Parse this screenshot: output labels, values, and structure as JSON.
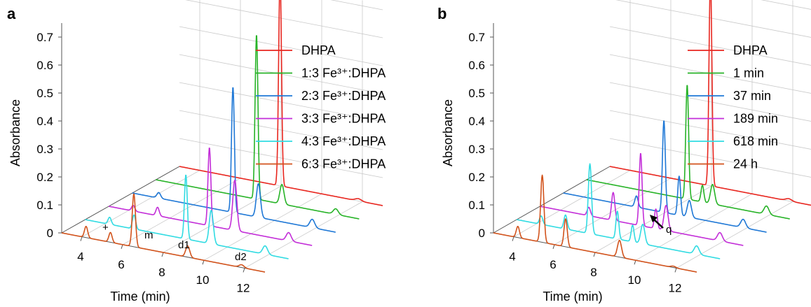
{
  "chart_data": [
    {
      "panel": "a",
      "type": "line",
      "view": "3d-waterfall",
      "xlabel": "Time (min)",
      "ylabel": "Absorbance",
      "xlim": [
        3,
        13
      ],
      "ylim": [
        0,
        0.75
      ],
      "x_ticks": [
        "4",
        "6",
        "8",
        "10",
        "12"
      ],
      "y_ticks": [
        "0",
        "0.1",
        "0.2",
        "0.3",
        "0.4",
        "0.5",
        "0.6",
        "0.7"
      ],
      "grid": true,
      "legend_position": "right",
      "series": [
        {
          "name": "DHPA",
          "color": "#e8261f",
          "peaks": [
            [
              7.95,
              0.75,
              0.07
            ],
            [
              11.8,
              0.008,
              0.15
            ]
          ]
        },
        {
          "name": "1:3 Fe³⁺:DHPA",
          "color": "#27b327",
          "peaks": [
            [
              7.95,
              0.59,
              0.07
            ],
            [
              9.2,
              0.07,
              0.1
            ],
            [
              11.85,
              0.02,
              0.12
            ]
          ]
        },
        {
          "name": "2:3 Fe³⁺:DHPA",
          "color": "#1f78d6",
          "peaks": [
            [
              4.3,
              0.02,
              0.09
            ],
            [
              7.95,
              0.45,
              0.07
            ],
            [
              9.2,
              0.12,
              0.1
            ],
            [
              11.85,
              0.03,
              0.12
            ]
          ]
        },
        {
          "name": "3:3 Fe³⁺:DHPA",
          "color": "#c32ed8",
          "peaks": [
            [
              4.2,
              0.02,
              0.08
            ],
            [
              5.4,
              0.03,
              0.08
            ],
            [
              7.95,
              0.28,
              0.07
            ],
            [
              9.2,
              0.18,
              0.1
            ],
            [
              11.85,
              0.03,
              0.12
            ]
          ]
        },
        {
          "name": "4:3 Fe³⁺:DHPA",
          "color": "#31dbe2",
          "peaks": [
            [
              4.2,
              0.025,
              0.08
            ],
            [
              5.4,
              0.05,
              0.08
            ],
            [
              7.95,
              0.23,
              0.07
            ],
            [
              9.2,
              0.12,
              0.1
            ],
            [
              11.85,
              0.03,
              0.12
            ]
          ]
        },
        {
          "name": "6:3 Fe³⁺:DHPA",
          "color": "#d2531c",
          "peaks": [
            [
              4.2,
              0.04,
              0.08
            ],
            [
              5.4,
              0.035,
              0.08
            ],
            [
              6.55,
              0.19,
              0.08
            ],
            [
              9.2,
              0.04,
              0.1
            ],
            [
              11.85,
              0.01,
              0.12
            ]
          ]
        }
      ],
      "annotations": [
        "+",
        "m",
        "d1",
        "d2"
      ]
    },
    {
      "panel": "b",
      "type": "line",
      "view": "3d-waterfall",
      "xlabel": "Time (min)",
      "ylabel": "Absorbance",
      "xlim": [
        3,
        13
      ],
      "ylim": [
        0,
        0.75
      ],
      "x_ticks": [
        "4",
        "6",
        "8",
        "10",
        "12"
      ],
      "y_ticks": [
        "0",
        "0.1",
        "0.2",
        "0.3",
        "0.4",
        "0.5",
        "0.6",
        "0.7"
      ],
      "grid": true,
      "legend_position": "right",
      "series": [
        {
          "name": "DHPA",
          "color": "#e8261f",
          "peaks": [
            [
              7.95,
              0.75,
              0.07
            ],
            [
              11.8,
              0.008,
              0.15
            ]
          ]
        },
        {
          "name": "1 min",
          "color": "#27b327",
          "peaks": [
            [
              7.95,
              0.41,
              0.07
            ],
            [
              8.7,
              0.06,
              0.07
            ],
            [
              9.2,
              0.07,
              0.1
            ],
            [
              11.85,
              0.03,
              0.12
            ]
          ]
        },
        {
          "name": "37 min",
          "color": "#1f78d6",
          "peaks": [
            [
              6.6,
              0.04,
              0.08
            ],
            [
              7.95,
              0.33,
              0.07
            ],
            [
              8.7,
              0.14,
              0.07
            ],
            [
              9.2,
              0.06,
              0.1
            ],
            [
              11.85,
              0.03,
              0.12
            ]
          ]
        },
        {
          "name": "189 min",
          "color": "#c32ed8",
          "peaks": [
            [
              5.4,
              0.03,
              0.08
            ],
            [
              6.6,
              0.1,
              0.08
            ],
            [
              7.95,
              0.26,
              0.07
            ],
            [
              8.7,
              0.07,
              0.07
            ],
            [
              9.2,
              0.09,
              0.1
            ],
            [
              11.85,
              0.03,
              0.12
            ]
          ]
        },
        {
          "name": "618 min",
          "color": "#31dbe2",
          "peaks": [
            [
              4.2,
              0.03,
              0.08
            ],
            [
              5.4,
              0.05,
              0.08
            ],
            [
              6.6,
              0.25,
              0.08
            ],
            [
              7.95,
              0.1,
              0.07
            ],
            [
              8.7,
              0.06,
              0.07
            ],
            [
              9.2,
              0.07,
              0.1
            ],
            [
              11.85,
              0.03,
              0.12
            ]
          ]
        },
        {
          "name": "24 h",
          "color": "#d2531c",
          "peaks": [
            [
              4.2,
              0.04,
              0.08
            ],
            [
              5.4,
              0.24,
              0.08
            ],
            [
              6.55,
              0.1,
              0.08
            ],
            [
              9.2,
              0.06,
              0.1
            ],
            [
              11.85,
              0.005,
              0.12
            ]
          ]
        }
      ],
      "annotations": [
        "q"
      ]
    }
  ],
  "panels": {
    "a": {
      "letter": "a",
      "annotations": {
        "plus": "+",
        "m": "m",
        "d1": "d1",
        "d2": "d2"
      }
    },
    "b": {
      "letter": "b",
      "annotations": {
        "q": "q"
      }
    }
  }
}
